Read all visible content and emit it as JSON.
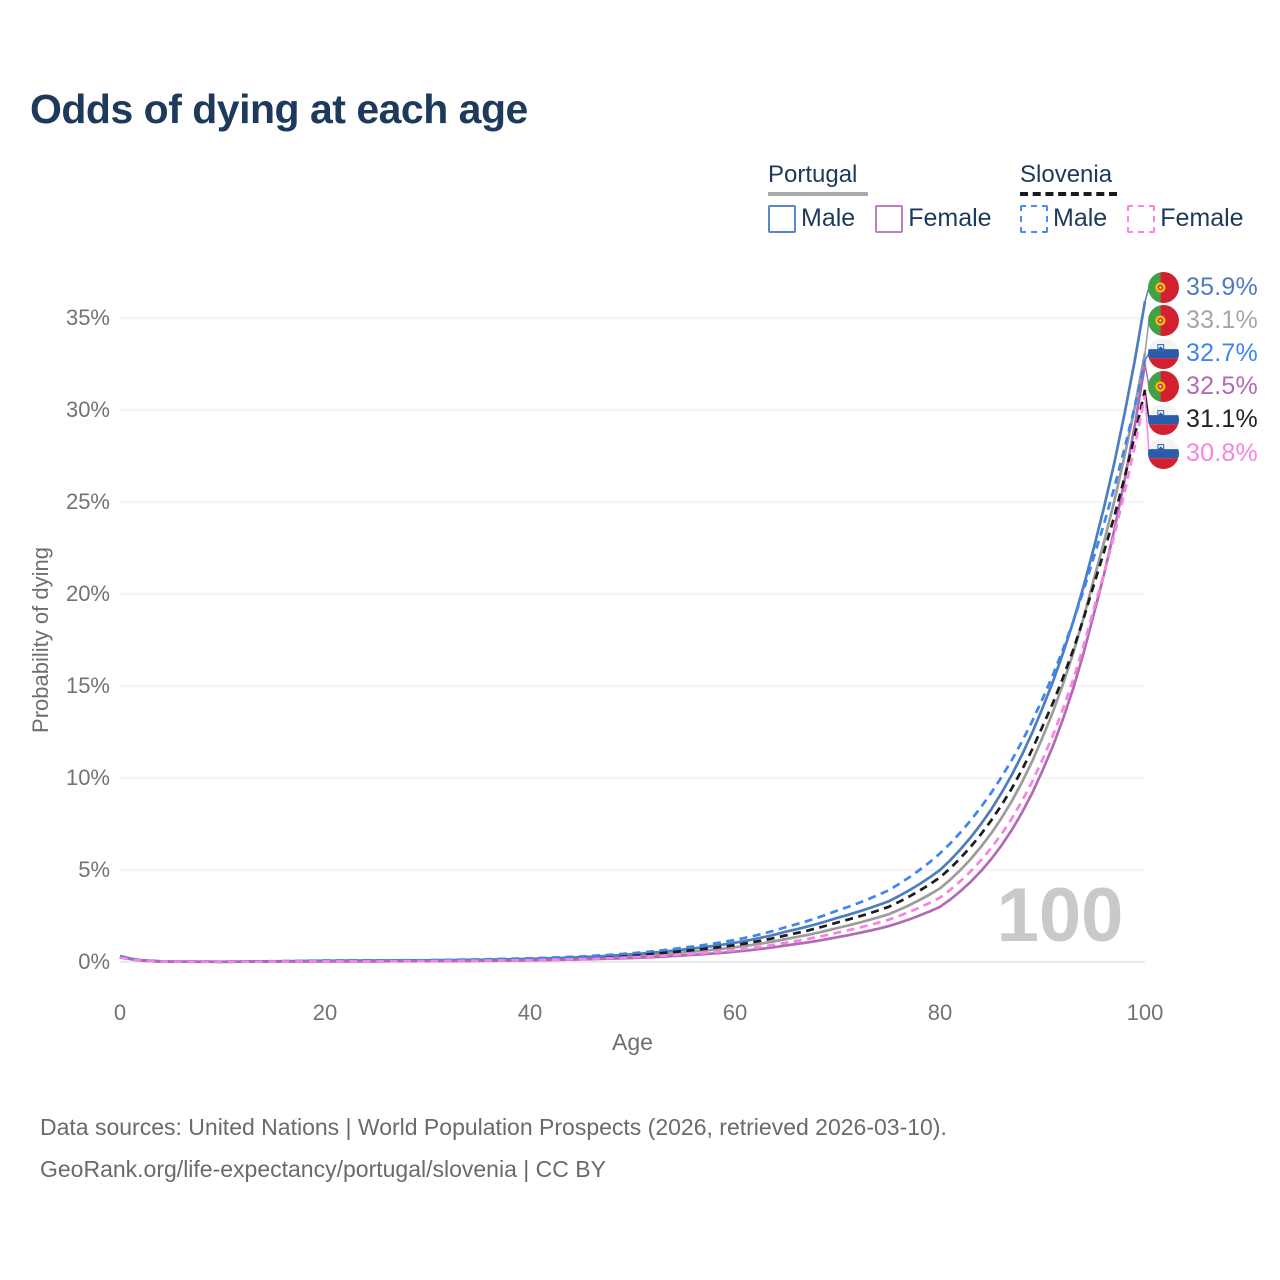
{
  "title": "Odds of dying at each age",
  "legend": {
    "portugal": {
      "label": "Portugal",
      "male": "Male",
      "female": "Female",
      "line_color": "#a9a9a9",
      "male_color": "#5b87c6",
      "female_color": "#bd7fc0",
      "style": "solid"
    },
    "slovenia": {
      "label": "Slovenia",
      "male": "Male",
      "female": "Female",
      "line_color": "#1a1a1a",
      "male_color": "#4a8cf7",
      "female_color": "#fb86e1",
      "style": "dashed"
    }
  },
  "footer": {
    "line1": "Data sources: United Nations | World Population Prospects (2026, retrieved 2026-03-10).",
    "line2": "GeoRank.org/life-expectancy/portugal/slovenia | CC BY"
  },
  "chart_data": {
    "type": "line",
    "title": "Odds of dying at each age",
    "xlabel": "Age",
    "ylabel": "Probability of dying",
    "xlim": [
      0,
      100
    ],
    "ylim_percent": [
      0,
      37
    ],
    "xticks": [
      0,
      20,
      40,
      60,
      80,
      100
    ],
    "yticks": [
      "0%",
      "5%",
      "10%",
      "15%",
      "20%",
      "25%",
      "30%",
      "35%"
    ],
    "ytick_values": [
      0,
      5,
      10,
      15,
      20,
      25,
      30,
      35
    ],
    "grid": "horizontal",
    "legend_position": "top-right",
    "watermark": "100",
    "ages": [
      0,
      5,
      10,
      15,
      20,
      25,
      30,
      35,
      40,
      45,
      50,
      55,
      60,
      65,
      70,
      75,
      80,
      85,
      90,
      95,
      100
    ],
    "series": [
      {
        "name": "Portugal Both sexes",
        "country": "portugal",
        "color": "#9c9c9c",
        "label_color": "#a6a6a6",
        "dash": false,
        "end_label": "33.1%",
        "values": [
          0.3,
          0.018,
          0.013,
          0.03,
          0.05,
          0.06,
          0.07,
          0.09,
          0.13,
          0.2,
          0.32,
          0.52,
          0.8,
          1.25,
          1.85,
          2.6,
          4.0,
          7.0,
          12.2,
          20.8,
          33.1
        ]
      },
      {
        "name": "Portugal Male",
        "country": "portugal",
        "color": "#4d7dbe",
        "label_color": "#4d7dbe",
        "dash": false,
        "end_label": "35.9%",
        "values": [
          0.32,
          0.02,
          0.015,
          0.04,
          0.07,
          0.08,
          0.09,
          0.12,
          0.17,
          0.26,
          0.42,
          0.68,
          1.05,
          1.65,
          2.4,
          3.3,
          5.0,
          8.3,
          13.8,
          22.5,
          35.9
        ]
      },
      {
        "name": "Portugal Female",
        "country": "portugal",
        "color": "#b16ab4",
        "label_color": "#b16ab4",
        "dash": false,
        "end_label": "32.5%",
        "values": [
          0.28,
          0.015,
          0.01,
          0.02,
          0.03,
          0.035,
          0.045,
          0.06,
          0.09,
          0.14,
          0.22,
          0.36,
          0.56,
          0.9,
          1.35,
          1.95,
          3.0,
          5.6,
          10.4,
          18.9,
          32.5
        ]
      },
      {
        "name": "Slovenia Both sexes",
        "country": "slovenia",
        "color": "#1c1c1c",
        "label_color": "#222222",
        "dash": true,
        "end_label": "31.1%",
        "values": [
          0.26,
          0.018,
          0.013,
          0.033,
          0.055,
          0.065,
          0.075,
          0.1,
          0.15,
          0.23,
          0.37,
          0.6,
          0.92,
          1.45,
          2.15,
          3.0,
          4.6,
          7.7,
          12.8,
          20.5,
          31.1
        ]
      },
      {
        "name": "Slovenia Male",
        "country": "slovenia",
        "color": "#3d85f2",
        "label_color": "#3d85f2",
        "dash": true,
        "end_label": "32.7%",
        "values": [
          0.28,
          0.02,
          0.015,
          0.045,
          0.08,
          0.09,
          0.1,
          0.14,
          0.2,
          0.3,
          0.48,
          0.78,
          1.2,
          1.9,
          2.8,
          3.9,
          5.9,
          9.2,
          14.3,
          22.0,
          32.7
        ]
      },
      {
        "name": "Slovenia Female",
        "country": "slovenia",
        "color": "#f883e2",
        "label_color": "#f883e2",
        "dash": true,
        "end_label": "30.8%",
        "values": [
          0.24,
          0.015,
          0.01,
          0.022,
          0.035,
          0.04,
          0.05,
          0.07,
          0.1,
          0.16,
          0.26,
          0.42,
          0.65,
          1.05,
          1.6,
          2.3,
          3.5,
          6.2,
          11.0,
          19.2,
          30.8
        ]
      }
    ]
  }
}
